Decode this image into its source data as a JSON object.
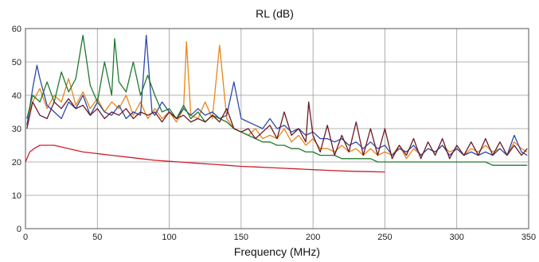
{
  "chart_data": {
    "type": "line",
    "title": "RL (dB)",
    "xlabel": "Frequency (MHz)",
    "ylabel": "",
    "xlim": [
      0,
      350
    ],
    "ylim": [
      0,
      60
    ],
    "x_ticks": [
      "0",
      "50",
      "100",
      "150",
      "200",
      "250",
      "300",
      "350"
    ],
    "y_ticks": [
      "0",
      "10",
      "20",
      "30",
      "40",
      "50",
      "60"
    ],
    "grid": true,
    "legend": "none",
    "series": [
      {
        "color": "#e8861a",
        "points": [
          [
            1,
            33
          ],
          [
            5,
            38
          ],
          [
            10,
            42
          ],
          [
            15,
            36
          ],
          [
            20,
            40
          ],
          [
            25,
            38
          ],
          [
            30,
            45
          ],
          [
            35,
            37
          ],
          [
            40,
            41
          ],
          [
            45,
            36
          ],
          [
            50,
            39
          ],
          [
            55,
            35
          ],
          [
            60,
            38
          ],
          [
            65,
            36
          ],
          [
            70,
            40
          ],
          [
            75,
            34
          ],
          [
            80,
            38
          ],
          [
            85,
            33
          ],
          [
            90,
            36
          ],
          [
            95,
            33
          ],
          [
            100,
            35
          ],
          [
            105,
            32
          ],
          [
            110,
            36
          ],
          [
            112,
            56
          ],
          [
            115,
            34
          ],
          [
            120,
            33
          ],
          [
            125,
            38
          ],
          [
            130,
            33
          ],
          [
            135,
            55
          ],
          [
            140,
            33
          ],
          [
            145,
            30
          ],
          [
            150,
            29
          ],
          [
            155,
            28
          ],
          [
            160,
            30
          ],
          [
            165,
            27
          ],
          [
            170,
            28
          ],
          [
            175,
            27
          ],
          [
            180,
            30
          ],
          [
            185,
            26
          ],
          [
            190,
            28
          ],
          [
            195,
            25
          ],
          [
            200,
            27
          ],
          [
            205,
            24
          ],
          [
            210,
            24
          ],
          [
            215,
            23
          ],
          [
            220,
            25
          ],
          [
            225,
            23
          ],
          [
            230,
            24
          ],
          [
            235,
            22
          ],
          [
            240,
            24
          ],
          [
            245,
            22
          ],
          [
            250,
            23
          ],
          [
            255,
            22
          ],
          [
            260,
            25
          ],
          [
            265,
            21
          ],
          [
            270,
            24
          ],
          [
            275,
            22
          ],
          [
            280,
            24
          ],
          [
            285,
            23
          ],
          [
            290,
            25
          ],
          [
            295,
            23
          ],
          [
            300,
            24
          ],
          [
            305,
            22
          ],
          [
            310,
            24
          ],
          [
            315,
            23
          ],
          [
            320,
            25
          ],
          [
            325,
            23
          ],
          [
            330,
            24
          ],
          [
            335,
            22
          ],
          [
            340,
            26
          ],
          [
            345,
            24
          ],
          [
            349,
            23
          ]
        ]
      },
      {
        "color": "#2e4aa8",
        "points": [
          [
            1,
            31
          ],
          [
            5,
            42
          ],
          [
            8,
            49
          ],
          [
            10,
            45
          ],
          [
            15,
            37
          ],
          [
            20,
            35
          ],
          [
            25,
            33
          ],
          [
            30,
            38
          ],
          [
            35,
            36
          ],
          [
            40,
            40
          ],
          [
            45,
            34
          ],
          [
            50,
            38
          ],
          [
            55,
            35
          ],
          [
            60,
            34
          ],
          [
            65,
            37
          ],
          [
            70,
            33
          ],
          [
            75,
            35
          ],
          [
            80,
            34
          ],
          [
            84,
            58
          ],
          [
            88,
            35
          ],
          [
            90,
            34
          ],
          [
            95,
            38
          ],
          [
            100,
            35
          ],
          [
            105,
            33
          ],
          [
            110,
            36
          ],
          [
            115,
            34
          ],
          [
            120,
            36
          ],
          [
            125,
            34
          ],
          [
            130,
            35
          ],
          [
            135,
            33
          ],
          [
            140,
            34
          ],
          [
            145,
            44
          ],
          [
            150,
            33
          ],
          [
            155,
            32
          ],
          [
            160,
            31
          ],
          [
            165,
            30
          ],
          [
            170,
            33
          ],
          [
            175,
            30
          ],
          [
            180,
            31
          ],
          [
            185,
            29
          ],
          [
            190,
            30
          ],
          [
            195,
            28
          ],
          [
            200,
            29
          ],
          [
            205,
            27
          ],
          [
            210,
            27
          ],
          [
            215,
            26
          ],
          [
            220,
            27
          ],
          [
            225,
            25
          ],
          [
            230,
            26
          ],
          [
            235,
            24
          ],
          [
            240,
            26
          ],
          [
            245,
            24
          ],
          [
            250,
            25
          ],
          [
            255,
            22
          ],
          [
            260,
            24
          ],
          [
            265,
            23
          ],
          [
            270,
            25
          ],
          [
            275,
            22
          ],
          [
            280,
            24
          ],
          [
            285,
            23
          ],
          [
            290,
            25
          ],
          [
            295,
            22
          ],
          [
            300,
            24
          ],
          [
            305,
            22
          ],
          [
            310,
            23
          ],
          [
            315,
            22
          ],
          [
            320,
            23
          ],
          [
            325,
            22
          ],
          [
            330,
            24
          ],
          [
            335,
            22
          ],
          [
            340,
            28
          ],
          [
            345,
            23
          ],
          [
            349,
            22
          ]
        ]
      },
      {
        "color": "#1e7a2c",
        "points": [
          [
            1,
            33
          ],
          [
            5,
            40
          ],
          [
            10,
            38
          ],
          [
            15,
            44
          ],
          [
            20,
            38
          ],
          [
            25,
            47
          ],
          [
            30,
            41
          ],
          [
            35,
            45
          ],
          [
            40,
            58
          ],
          [
            45,
            43
          ],
          [
            50,
            38
          ],
          [
            55,
            50
          ],
          [
            60,
            40
          ],
          [
            62,
            57
          ],
          [
            65,
            44
          ],
          [
            70,
            41
          ],
          [
            75,
            50
          ],
          [
            80,
            40
          ],
          [
            85,
            46
          ],
          [
            90,
            40
          ],
          [
            95,
            35
          ],
          [
            100,
            36
          ],
          [
            105,
            33
          ],
          [
            110,
            37
          ],
          [
            115,
            33
          ],
          [
            120,
            35
          ],
          [
            125,
            32
          ],
          [
            130,
            34
          ],
          [
            135,
            33
          ],
          [
            140,
            32
          ],
          [
            145,
            30
          ],
          [
            150,
            29
          ],
          [
            155,
            28
          ],
          [
            160,
            27
          ],
          [
            165,
            26
          ],
          [
            170,
            26
          ],
          [
            175,
            25
          ],
          [
            180,
            25
          ],
          [
            185,
            24
          ],
          [
            190,
            24
          ],
          [
            195,
            23
          ],
          [
            200,
            23
          ],
          [
            205,
            22
          ],
          [
            210,
            22
          ],
          [
            215,
            22
          ],
          [
            220,
            21
          ],
          [
            225,
            21
          ],
          [
            230,
            21
          ],
          [
            235,
            21
          ],
          [
            240,
            21
          ],
          [
            245,
            20
          ],
          [
            250,
            20
          ],
          [
            255,
            20
          ],
          [
            260,
            20
          ],
          [
            265,
            20
          ],
          [
            270,
            20
          ],
          [
            275,
            20
          ],
          [
            280,
            20
          ],
          [
            285,
            20
          ],
          [
            290,
            20
          ],
          [
            295,
            20
          ],
          [
            300,
            20
          ],
          [
            305,
            20
          ],
          [
            310,
            20
          ],
          [
            315,
            20
          ],
          [
            320,
            20
          ],
          [
            325,
            19
          ],
          [
            330,
            19
          ],
          [
            335,
            19
          ],
          [
            340,
            19
          ],
          [
            345,
            19
          ],
          [
            349,
            19
          ]
        ]
      },
      {
        "color": "#6b1a24",
        "points": [
          [
            1,
            30
          ],
          [
            5,
            38
          ],
          [
            10,
            34
          ],
          [
            15,
            33
          ],
          [
            20,
            38
          ],
          [
            25,
            36
          ],
          [
            30,
            39
          ],
          [
            35,
            36
          ],
          [
            40,
            37
          ],
          [
            45,
            34
          ],
          [
            50,
            36
          ],
          [
            55,
            33
          ],
          [
            60,
            35
          ],
          [
            65,
            34
          ],
          [
            70,
            36
          ],
          [
            75,
            33
          ],
          [
            80,
            35
          ],
          [
            85,
            34
          ],
          [
            90,
            35
          ],
          [
            95,
            32
          ],
          [
            100,
            35
          ],
          [
            105,
            33
          ],
          [
            110,
            34
          ],
          [
            115,
            32
          ],
          [
            120,
            33
          ],
          [
            125,
            32
          ],
          [
            130,
            34
          ],
          [
            135,
            32
          ],
          [
            140,
            36
          ],
          [
            145,
            30
          ],
          [
            150,
            29
          ],
          [
            155,
            30
          ],
          [
            160,
            27
          ],
          [
            165,
            29
          ],
          [
            170,
            31
          ],
          [
            175,
            27
          ],
          [
            180,
            35
          ],
          [
            185,
            28
          ],
          [
            190,
            30
          ],
          [
            195,
            26
          ],
          [
            197,
            38
          ],
          [
            200,
            28
          ],
          [
            205,
            23
          ],
          [
            210,
            31
          ],
          [
            215,
            22
          ],
          [
            220,
            28
          ],
          [
            225,
            23
          ],
          [
            230,
            32
          ],
          [
            235,
            22
          ],
          [
            240,
            30
          ],
          [
            245,
            22
          ],
          [
            250,
            30
          ],
          [
            255,
            21
          ],
          [
            260,
            25
          ],
          [
            265,
            22
          ],
          [
            270,
            27
          ],
          [
            275,
            21
          ],
          [
            280,
            26
          ],
          [
            285,
            22
          ],
          [
            290,
            27
          ],
          [
            295,
            21
          ],
          [
            300,
            25
          ],
          [
            305,
            22
          ],
          [
            310,
            26
          ],
          [
            315,
            22
          ],
          [
            320,
            27
          ],
          [
            325,
            22
          ],
          [
            330,
            26
          ],
          [
            335,
            22
          ],
          [
            340,
            25
          ],
          [
            345,
            22
          ],
          [
            349,
            24
          ]
        ]
      },
      {
        "color": "#cc1f2b",
        "points": [
          [
            0,
            20
          ],
          [
            3,
            23
          ],
          [
            6,
            24
          ],
          [
            10,
            25
          ],
          [
            15,
            25
          ],
          [
            20,
            25
          ],
          [
            30,
            24
          ],
          [
            40,
            23
          ],
          [
            50,
            22.5
          ],
          [
            60,
            22
          ],
          [
            70,
            21.5
          ],
          [
            80,
            21
          ],
          [
            90,
            20.5
          ],
          [
            100,
            20.2
          ],
          [
            110,
            19.9
          ],
          [
            120,
            19.6
          ],
          [
            130,
            19.3
          ],
          [
            140,
            19
          ],
          [
            150,
            18.7
          ],
          [
            160,
            18.5
          ],
          [
            170,
            18.3
          ],
          [
            180,
            18.1
          ],
          [
            190,
            17.9
          ],
          [
            200,
            17.7
          ],
          [
            210,
            17.5
          ],
          [
            220,
            17.3
          ],
          [
            230,
            17.2
          ],
          [
            240,
            17.1
          ],
          [
            250,
            17
          ]
        ]
      }
    ]
  }
}
